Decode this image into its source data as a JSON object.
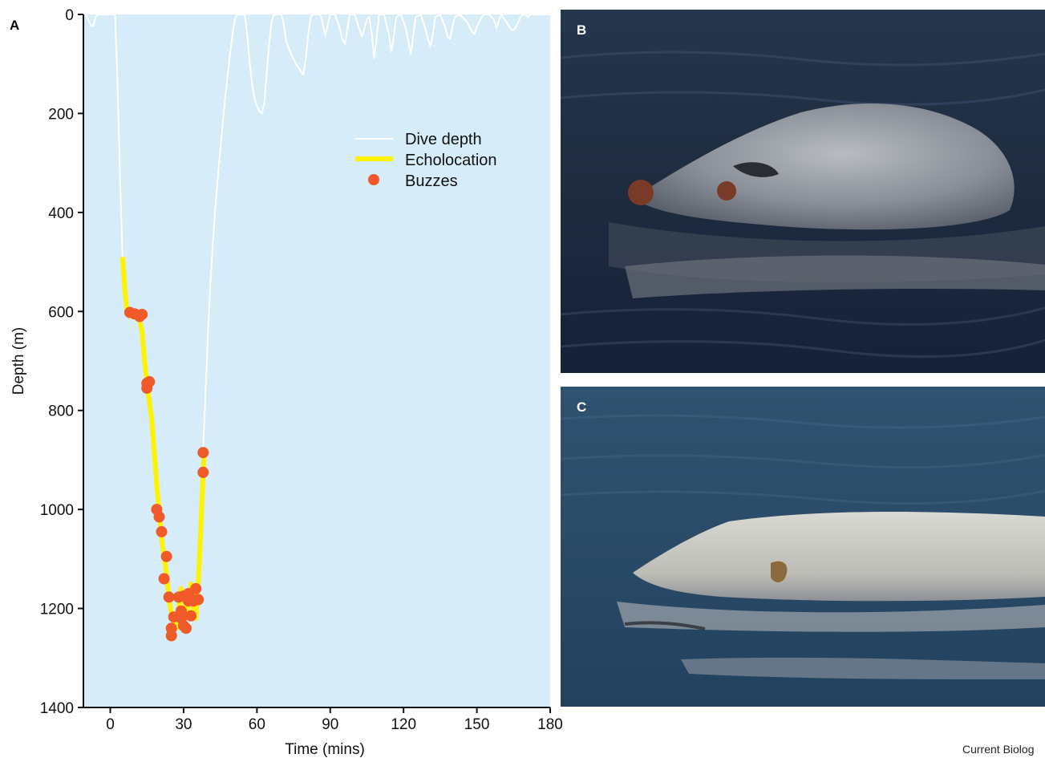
{
  "panels": {
    "a_letter": "A",
    "b_letter": "B",
    "c_letter": "C"
  },
  "credit": "Current Biolog",
  "photos": {
    "b_description_icon": "whale-head-photo-icon",
    "c_description_icon": "whale-head-photo-icon"
  },
  "colors": {
    "plot_background": "#d6ecf9",
    "dive_line": "#ffffff",
    "echolocation": "#fff200",
    "buzzes": "#ef5a28"
  },
  "chart_data": {
    "type": "line",
    "title": "",
    "xlabel": "Time (mins)",
    "ylabel": "Depth (m)",
    "xlim": [
      -11,
      180
    ],
    "ylim": [
      1400,
      0
    ],
    "y_inverted": true,
    "xticks": [
      0,
      30,
      60,
      90,
      120,
      150,
      180
    ],
    "yticks": [
      0,
      200,
      400,
      600,
      800,
      1000,
      1200,
      1400
    ],
    "grid": false,
    "legend_position": "upper-right",
    "legend": [
      "Dive depth",
      "Echolocation",
      "Buzzes"
    ],
    "series": [
      {
        "name": "Dive depth",
        "type": "line",
        "points": [
          [
            -10,
            0
          ],
          [
            -9,
            10
          ],
          [
            -8,
            22
          ],
          [
            -7,
            24
          ],
          [
            -6,
            5
          ],
          [
            -5,
            0
          ],
          [
            1,
            0
          ],
          [
            2,
            0
          ],
          [
            3,
            150
          ],
          [
            4,
            330
          ],
          [
            5,
            490
          ],
          [
            6,
            560
          ],
          [
            7,
            600
          ],
          [
            8,
            605
          ],
          [
            10,
            605
          ],
          [
            12,
            610
          ],
          [
            13,
            650
          ],
          [
            14,
            700
          ],
          [
            15,
            745
          ],
          [
            17,
            820
          ],
          [
            19,
            950
          ],
          [
            21,
            1060
          ],
          [
            23,
            1130
          ],
          [
            25,
            1200
          ],
          [
            27,
            1210
          ],
          [
            29,
            1230
          ],
          [
            31,
            1240
          ],
          [
            33,
            1230
          ],
          [
            35,
            1200
          ],
          [
            36,
            1100
          ],
          [
            37,
            980
          ],
          [
            38,
            880
          ],
          [
            39,
            760
          ],
          [
            40,
            640
          ],
          [
            41,
            540
          ],
          [
            42,
            460
          ],
          [
            43,
            390
          ],
          [
            44,
            330
          ],
          [
            45,
            275
          ],
          [
            46,
            220
          ],
          [
            47,
            170
          ],
          [
            48,
            125
          ],
          [
            49,
            80
          ],
          [
            50,
            40
          ],
          [
            51,
            10
          ],
          [
            52,
            0
          ],
          [
            55,
            0
          ],
          [
            56,
            40
          ],
          [
            57,
            95
          ],
          [
            58,
            140
          ],
          [
            59,
            170
          ],
          [
            60,
            185
          ],
          [
            61,
            195
          ],
          [
            62,
            200
          ],
          [
            63,
            180
          ],
          [
            64,
            120
          ],
          [
            65,
            60
          ],
          [
            66,
            15
          ],
          [
            67,
            0
          ],
          [
            70,
            0
          ],
          [
            71,
            20
          ],
          [
            72,
            55
          ],
          [
            74,
            80
          ],
          [
            76,
            100
          ],
          [
            78,
            115
          ],
          [
            79,
            122
          ],
          [
            80,
            90
          ],
          [
            81,
            40
          ],
          [
            82,
            5
          ],
          [
            83,
            0
          ],
          [
            86,
            0
          ],
          [
            87,
            20
          ],
          [
            88,
            42
          ],
          [
            89,
            20
          ],
          [
            90,
            0
          ],
          [
            92,
            0
          ],
          [
            94,
            30
          ],
          [
            95,
            50
          ],
          [
            96,
            60
          ],
          [
            97,
            30
          ],
          [
            98,
            0
          ],
          [
            100,
            0
          ],
          [
            101,
            15
          ],
          [
            103,
            45
          ],
          [
            104,
            28
          ],
          [
            105,
            10
          ],
          [
            106,
            5
          ],
          [
            107,
            40
          ],
          [
            108,
            88
          ],
          [
            109,
            45
          ],
          [
            110,
            0
          ],
          [
            112,
            0
          ],
          [
            114,
            40
          ],
          [
            115,
            75
          ],
          [
            116,
            45
          ],
          [
            117,
            5
          ],
          [
            119,
            0
          ],
          [
            121,
            30
          ],
          [
            122,
            55
          ],
          [
            123,
            80
          ],
          [
            124,
            40
          ],
          [
            125,
            5
          ],
          [
            127,
            0
          ],
          [
            129,
            30
          ],
          [
            130,
            50
          ],
          [
            131,
            65
          ],
          [
            132,
            40
          ],
          [
            133,
            5
          ],
          [
            135,
            0
          ],
          [
            137,
            25
          ],
          [
            138,
            45
          ],
          [
            139,
            50
          ],
          [
            140,
            25
          ],
          [
            141,
            5
          ],
          [
            143,
            0
          ],
          [
            146,
            15
          ],
          [
            148,
            35
          ],
          [
            149,
            40
          ],
          [
            150,
            25
          ],
          [
            152,
            5
          ],
          [
            153,
            0
          ],
          [
            155,
            0
          ],
          [
            157,
            10
          ],
          [
            158,
            28
          ],
          [
            159,
            12
          ],
          [
            160,
            0
          ],
          [
            162,
            15
          ],
          [
            164,
            30
          ],
          [
            165,
            32
          ],
          [
            166,
            25
          ],
          [
            167,
            15
          ],
          [
            168,
            5
          ],
          [
            169,
            0
          ],
          [
            170,
            0
          ],
          [
            171,
            5
          ],
          [
            172,
            0
          ],
          [
            180,
            0
          ]
        ]
      },
      {
        "name": "Echolocation",
        "type": "line",
        "points": [
          [
            5,
            490
          ],
          [
            6,
            560
          ],
          [
            7,
            605
          ],
          [
            8,
            610
          ],
          [
            10,
            605
          ],
          [
            12,
            620
          ],
          [
            13,
            640
          ],
          [
            14,
            700
          ],
          [
            15,
            745
          ],
          [
            17,
            820
          ],
          [
            19,
            950
          ],
          [
            21,
            1060
          ],
          [
            23,
            1130
          ],
          [
            24,
            1180
          ],
          [
            25,
            1210
          ],
          [
            26,
            1230
          ],
          [
            27,
            1240
          ],
          [
            28,
            1200
          ],
          [
            29,
            1160
          ],
          [
            30,
            1170
          ],
          [
            31,
            1215
          ],
          [
            32,
            1190
          ],
          [
            33,
            1150
          ],
          [
            34,
            1200
          ],
          [
            35,
            1220
          ],
          [
            36,
            1150
          ],
          [
            37,
            1040
          ],
          [
            38,
            925
          ],
          [
            38.5,
            880
          ]
        ]
      },
      {
        "name": "Buzzes",
        "type": "scatter",
        "points": [
          [
            8,
            602
          ],
          [
            10,
            605
          ],
          [
            12,
            610
          ],
          [
            13,
            606
          ],
          [
            15,
            745
          ],
          [
            15,
            755
          ],
          [
            16,
            742
          ],
          [
            19,
            1000
          ],
          [
            20,
            1015
          ],
          [
            21,
            1045
          ],
          [
            22,
            1140
          ],
          [
            23,
            1095
          ],
          [
            24,
            1177
          ],
          [
            25,
            1240
          ],
          [
            25,
            1255
          ],
          [
            26,
            1217
          ],
          [
            28,
            1177
          ],
          [
            29,
            1205
          ],
          [
            29,
            1220
          ],
          [
            30,
            1175
          ],
          [
            30,
            1235
          ],
          [
            31,
            1240
          ],
          [
            32,
            1185
          ],
          [
            32,
            1170
          ],
          [
            33,
            1215
          ],
          [
            33,
            1180
          ],
          [
            34,
            1185
          ],
          [
            35,
            1160
          ],
          [
            36,
            1182
          ],
          [
            38,
            925
          ],
          [
            38,
            885
          ]
        ]
      }
    ]
  }
}
